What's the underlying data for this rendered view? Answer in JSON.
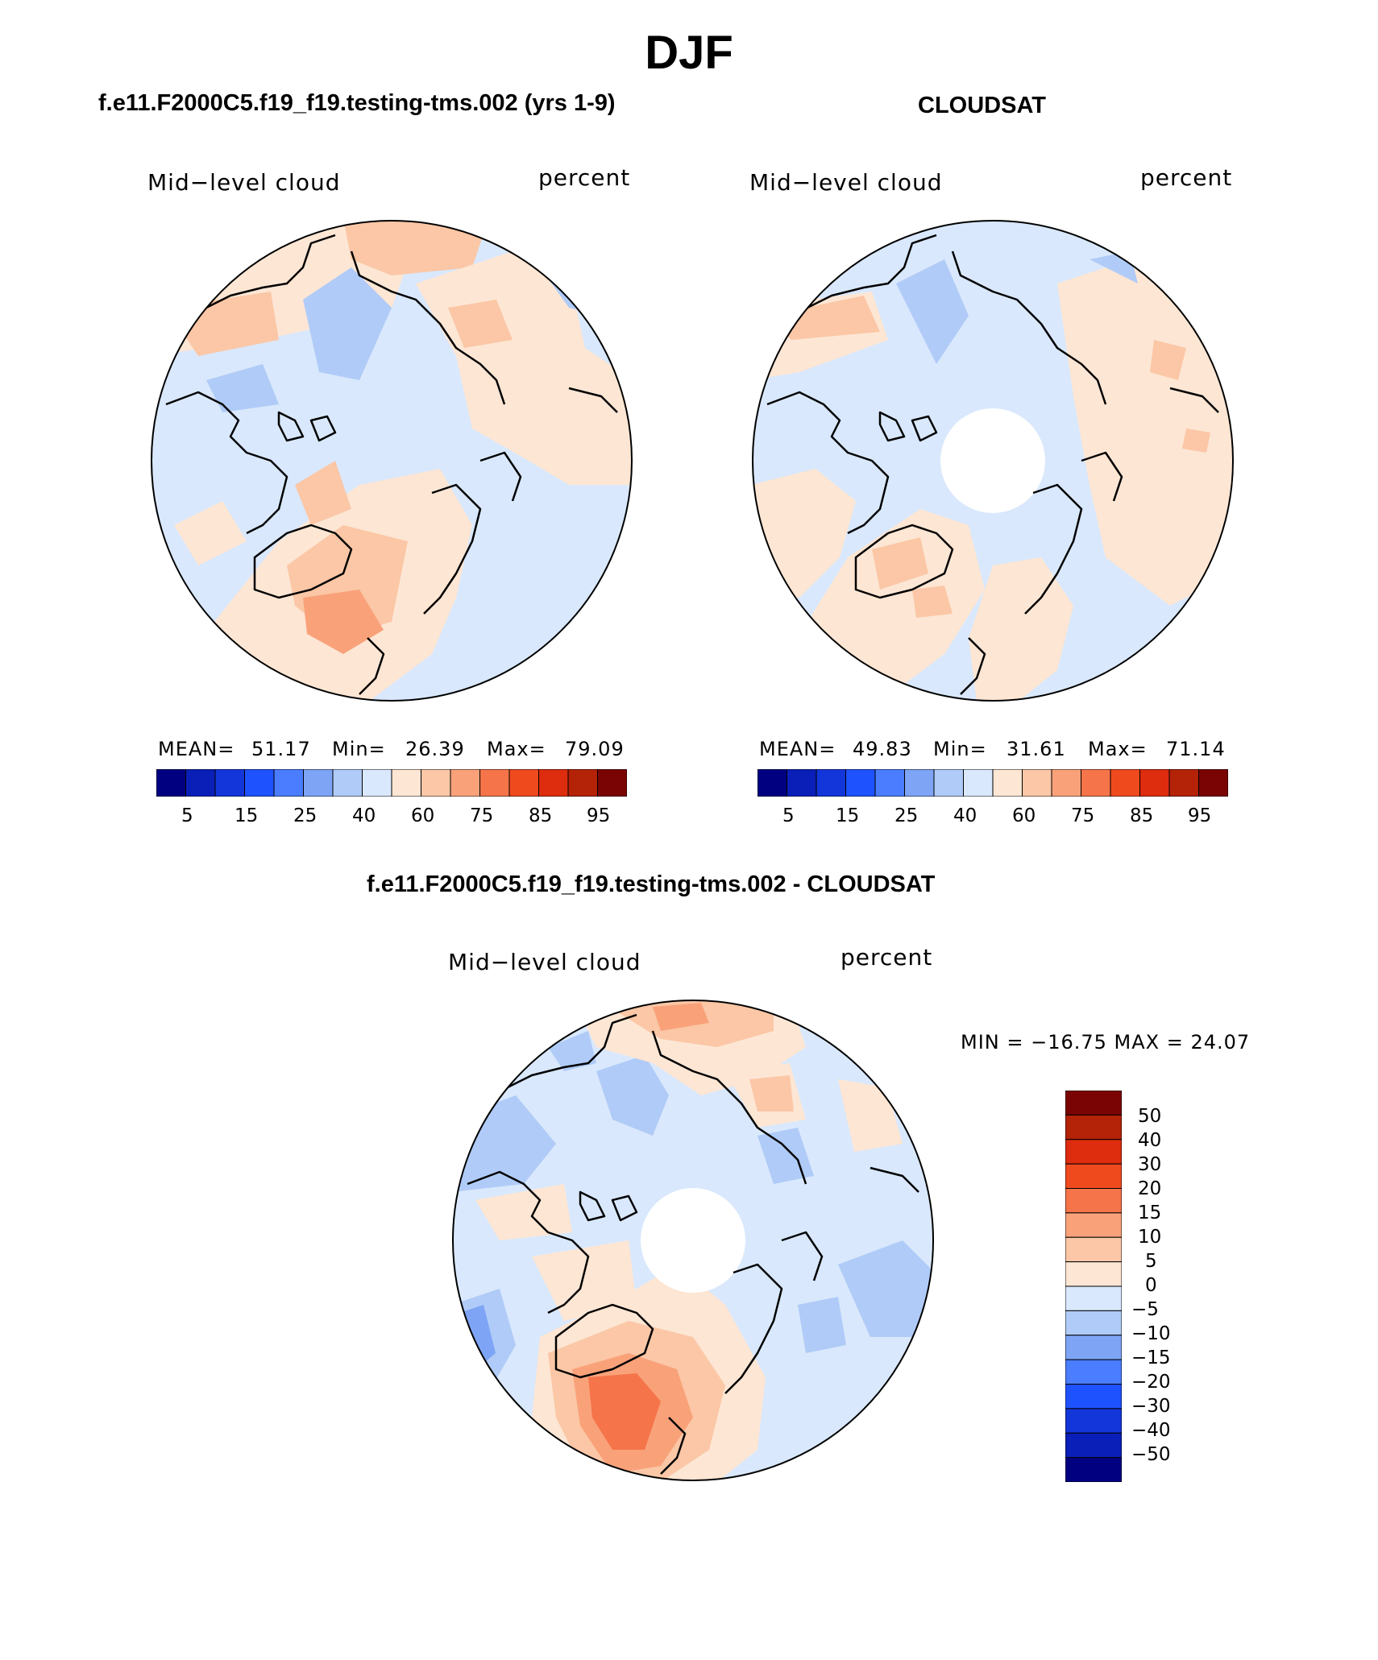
{
  "title": "DJF",
  "panels": [
    {
      "id": "model",
      "header": "f.e11.F2000C5.f19_f19.testing-tms.002 (yrs 1-9)",
      "variable": "Mid−level cloud",
      "units": "percent",
      "stats": {
        "mean_label": "MEAN=",
        "mean": "51.17",
        "min_label": "Min=",
        "min": "26.39",
        "max_label": "Max=",
        "max": "79.09"
      },
      "colorbar_ticks": [
        "5",
        "15",
        "25",
        "40",
        "60",
        "75",
        "85",
        "95"
      ]
    },
    {
      "id": "obs",
      "header": "CLOUDSAT",
      "variable": "Mid−level cloud",
      "units": "percent",
      "stats": {
        "mean_label": "MEAN=",
        "mean": "49.83",
        "min_label": "Min=",
        "min": "31.61",
        "max_label": "Max=",
        "max": "71.14"
      },
      "colorbar_ticks": [
        "5",
        "15",
        "25",
        "40",
        "60",
        "75",
        "85",
        "95"
      ]
    },
    {
      "id": "diff",
      "header": "f.e11.F2000C5.f19_f19.testing-tms.002 - CLOUDSAT",
      "variable": "Mid−level cloud",
      "units": "percent",
      "minmax": "MIN = −16.75  MAX =   24.07",
      "colorbar_ticks": [
        "50",
        "40",
        "30",
        "20",
        "15",
        "10",
        "5",
        "0",
        "−5",
        "−10",
        "−15",
        "−20",
        "−30",
        "−40",
        "−50"
      ]
    }
  ],
  "colors": {
    "abs_scale": [
      "#000080",
      "#0a1fb8",
      "#1236d9",
      "#1f52ff",
      "#4a7dff",
      "#7ea5f5",
      "#b0cbf7",
      "#d9e8fc",
      "#fde6d4",
      "#fbc7a6",
      "#f9a27a",
      "#f5744a",
      "#ef4a1e",
      "#de2c0e",
      "#b42208",
      "#7a0403"
    ],
    "diff_scale": [
      "#000080",
      "#0a1fb8",
      "#1236d9",
      "#1f52ff",
      "#4a7dff",
      "#7ea5f5",
      "#b0cbf7",
      "#d9e8fc",
      "#fde6d4",
      "#fbc7a6",
      "#f9a27a",
      "#f5744a",
      "#ef4a1e",
      "#de2c0e",
      "#b42208",
      "#7a0403"
    ]
  }
}
